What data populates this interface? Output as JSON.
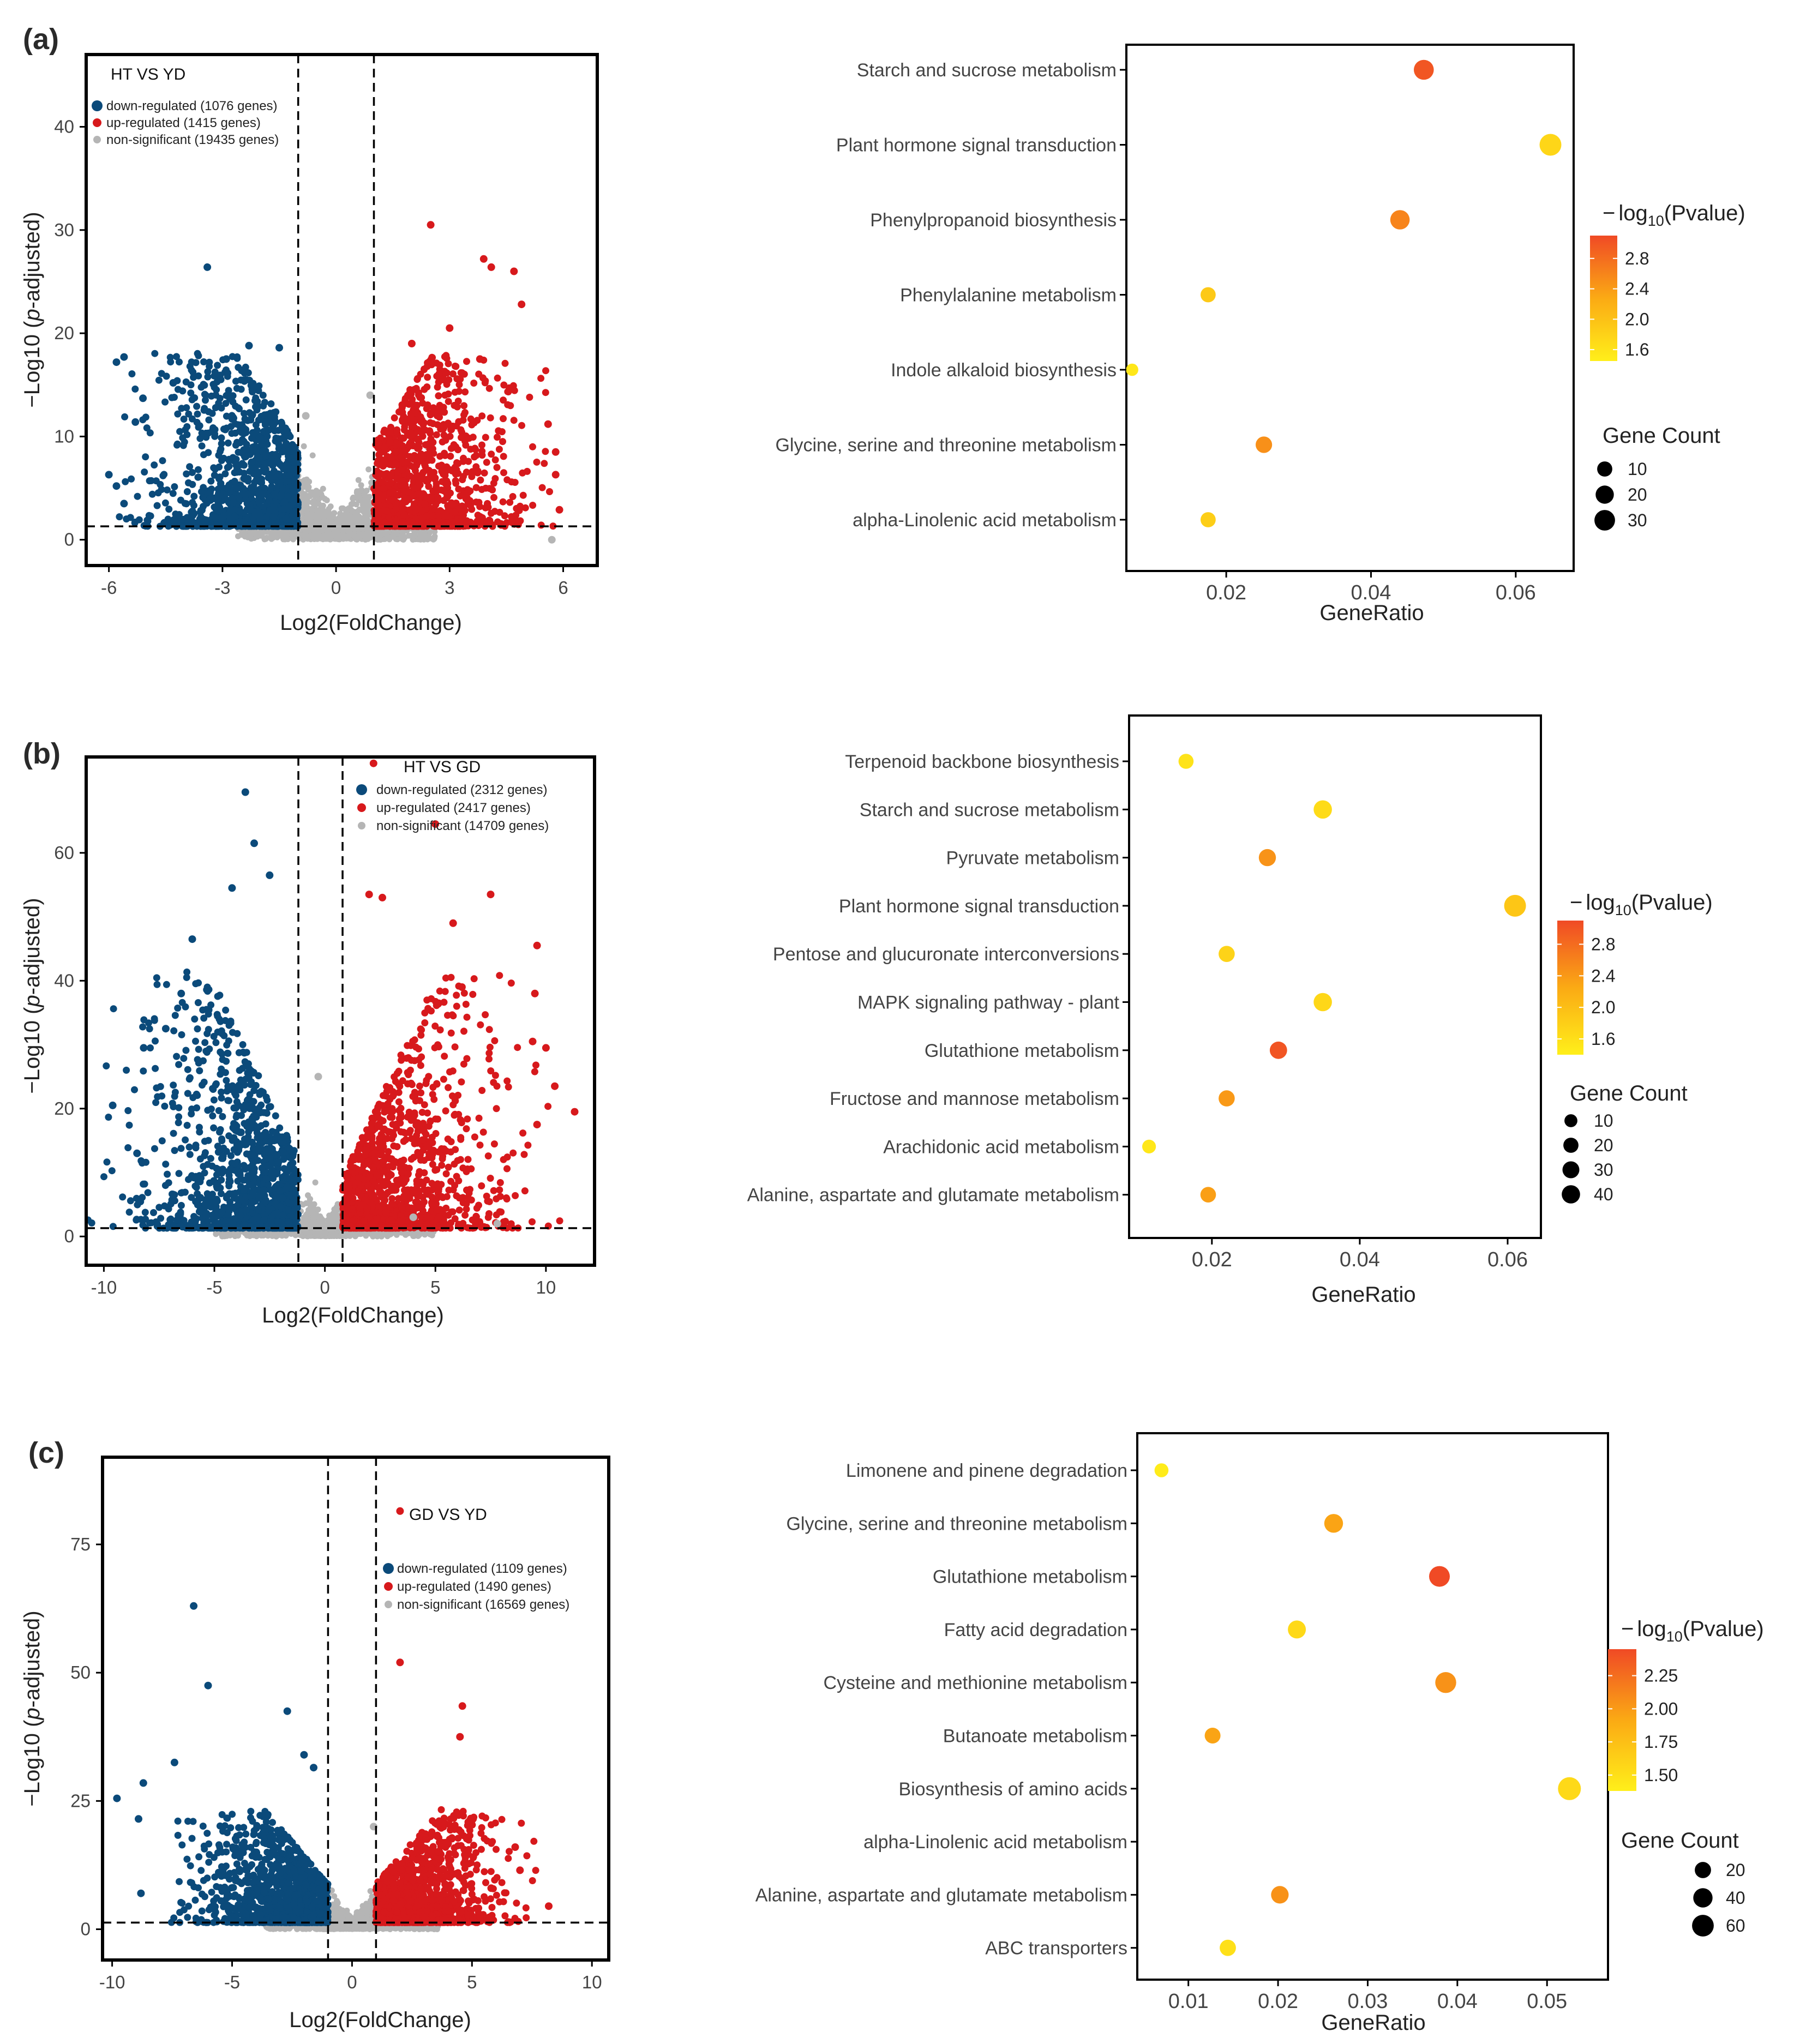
{
  "colors": {
    "down": "#0b4a7a",
    "up": "#d7191c",
    "ns": "#b5b5b5",
    "gradient_low": "#ffef1a",
    "gradient_high": "#f04a25"
  },
  "chart_data": [
    {
      "panel": "(a)",
      "type": "scatter",
      "subtype": "volcano",
      "title": "HT VS YD",
      "xlabel": "Log2(FoldChange)",
      "ylabel_prefix": "−Log10 (",
      "ylabel_italic": "p",
      "ylabel_suffix": "-adjusted)",
      "xlim": [
        -6.6,
        6.9
      ],
      "ylim": [
        -2.5,
        47
      ],
      "xticks": [
        -6,
        -3,
        0,
        3,
        6
      ],
      "yticks": [
        0,
        10,
        20,
        30,
        40
      ],
      "fc_thresholds": [
        -1,
        1
      ],
      "p_threshold": 1.3,
      "x_spread": 5.8,
      "y_max": 30.5,
      "legend": [
        {
          "label": "down-regulated (1076 genes)",
          "color_key": "down"
        },
        {
          "label": "up-regulated (1415 genes)",
          "color_key": "up"
        },
        {
          "label": "non-significant (19435 genes)",
          "color_key": "ns"
        }
      ],
      "outliers": [
        {
          "x": 2.5,
          "y": 30.5,
          "g": "up"
        },
        {
          "x": 3.9,
          "y": 27.2,
          "g": "up"
        },
        {
          "x": 4.1,
          "y": 26.4,
          "g": "up"
        },
        {
          "x": 4.7,
          "y": 26.0,
          "g": "up"
        },
        {
          "x": 4.9,
          "y": 22.8,
          "g": "up"
        },
        {
          "x": 3.0,
          "y": 20.5,
          "g": "up"
        },
        {
          "x": 2.0,
          "y": 19.0,
          "g": "up"
        },
        {
          "x": 3.8,
          "y": 17.5,
          "g": "up"
        },
        {
          "x": 5.6,
          "y": 11.2,
          "g": "up"
        },
        {
          "x": 5.8,
          "y": 8.5,
          "g": "up"
        },
        {
          "x": 5.8,
          "y": 6.3,
          "g": "up"
        },
        {
          "x": 5.9,
          "y": 2.9,
          "g": "up"
        },
        {
          "x": -3.4,
          "y": 26.4,
          "g": "down"
        },
        {
          "x": -5.8,
          "y": 17.2,
          "g": "down"
        },
        {
          "x": -5.6,
          "y": 17.7,
          "g": "down"
        },
        {
          "x": -2.3,
          "y": 18.8,
          "g": "down"
        },
        {
          "x": -1.5,
          "y": 18.6,
          "g": "down"
        },
        {
          "x": -2.9,
          "y": 17.5,
          "g": "down"
        },
        {
          "x": -4.3,
          "y": 15.2,
          "g": "down"
        },
        {
          "x": -5.1,
          "y": 13.7,
          "g": "down"
        },
        {
          "x": -5.3,
          "y": 11.4,
          "g": "down"
        },
        {
          "x": -6.0,
          "y": 6.3,
          "g": "down"
        },
        {
          "x": -5.8,
          "y": 5.2,
          "g": "down"
        },
        {
          "x": -5.6,
          "y": 3.5,
          "g": "down"
        },
        {
          "x": 0.9,
          "y": 14.0,
          "g": "ns"
        },
        {
          "x": -0.8,
          "y": 12.0,
          "g": "ns"
        },
        {
          "x": 5.7,
          "y": 0.0,
          "g": "ns"
        }
      ]
    },
    {
      "panel": "(a)",
      "type": "scatter",
      "subtype": "kegg-dot",
      "xlabel": "GeneRatio",
      "xlim": [
        0.0062,
        0.068
      ],
      "xticks": [
        0.02,
        0.04,
        0.06
      ],
      "tick_labels": [
        "0.02",
        "0.04",
        "0.06"
      ],
      "pathways": [
        "Starch and sucrose metabolism",
        "Plant hormone signal transduction",
        "Phenylpropanoid biosynthesis",
        "Phenylalanine metabolism",
        "Indole alkaloid biosynthesis",
        "Glycine, serine and threonine metabolism",
        "alpha-Linolenic acid metabolism"
      ],
      "gene_ratio": [
        0.0473,
        0.0648,
        0.044,
        0.0175,
        0.007,
        0.0252,
        0.0175
      ],
      "count": [
        27,
        36,
        25,
        10,
        4,
        14,
        10
      ],
      "neglog10_p": [
        3.0,
        1.75,
        2.6,
        1.9,
        1.55,
        2.5,
        1.85
      ],
      "color_range": [
        1.45,
        3.1
      ],
      "color_ticks": [
        2.8,
        2.4,
        2.0,
        1.6
      ],
      "color_tick_labels": [
        "2.8",
        "2.4",
        "2.0",
        "1.6"
      ],
      "color_title": "log",
      "color_title_prefix": "−",
      "color_title_sub": "10",
      "color_title_suffix": "(Pvalue)",
      "size_title": "Gene Count",
      "size_legend": [
        10,
        20,
        30
      ],
      "size_legend_labels": [
        "10",
        "20",
        "30"
      ],
      "size_max": 36
    },
    {
      "panel": "(b)",
      "type": "scatter",
      "subtype": "volcano",
      "title": "HT VS GD",
      "xlabel": "Log2(FoldChange)",
      "ylabel_prefix": "−Log10 (",
      "ylabel_italic": "p",
      "ylabel_suffix": "-adjusted)",
      "xlim": [
        -10.8,
        12.2
      ],
      "ylim": [
        -4.5,
        75
      ],
      "xticks": [
        -10,
        -5,
        0,
        5,
        10
      ],
      "yticks": [
        0,
        20,
        40,
        60
      ],
      "fc_thresholds": [
        -1.2,
        0.8
      ],
      "p_threshold": 1.3,
      "x_spread": 11,
      "y_max": 73,
      "legend": [
        {
          "label": "down-regulated (2312 genes)",
          "color_key": "down"
        },
        {
          "label": "up-regulated (2417 genes)",
          "color_key": "up"
        },
        {
          "label": "non-significant (14709 genes)",
          "color_key": "ns"
        }
      ],
      "outliers": [
        {
          "x": 2.2,
          "y": 74.0,
          "g": "up"
        },
        {
          "x": 5.0,
          "y": 64.5,
          "g": "up"
        },
        {
          "x": 2.0,
          "y": 53.5,
          "g": "up"
        },
        {
          "x": 2.6,
          "y": 53.0,
          "g": "up"
        },
        {
          "x": 7.5,
          "y": 53.5,
          "g": "up"
        },
        {
          "x": 5.8,
          "y": 49.0,
          "g": "up"
        },
        {
          "x": 9.6,
          "y": 45.5,
          "g": "up"
        },
        {
          "x": 6.2,
          "y": 39.0,
          "g": "up"
        },
        {
          "x": 9.5,
          "y": 38.0,
          "g": "up"
        },
        {
          "x": 10.0,
          "y": 29.5,
          "g": "up"
        },
        {
          "x": 9.4,
          "y": 30.5,
          "g": "up"
        },
        {
          "x": 11.3,
          "y": 19.5,
          "g": "up"
        },
        {
          "x": 10.4,
          "y": 23.5,
          "g": "up"
        },
        {
          "x": 9.6,
          "y": 17.5,
          "g": "up"
        },
        {
          "x": 7.8,
          "y": 2.0,
          "g": "ns"
        },
        {
          "x": -3.6,
          "y": 69.5,
          "g": "down"
        },
        {
          "x": -3.2,
          "y": 61.5,
          "g": "down"
        },
        {
          "x": -2.5,
          "y": 56.5,
          "g": "down"
        },
        {
          "x": -4.2,
          "y": 54.5,
          "g": "down"
        },
        {
          "x": -6.0,
          "y": 46.5,
          "g": "down"
        },
        {
          "x": -7.2,
          "y": 32.5,
          "g": "down"
        },
        {
          "x": -8.2,
          "y": 29.5,
          "g": "down"
        },
        {
          "x": -9.6,
          "y": 20.5,
          "g": "down"
        },
        {
          "x": -8.5,
          "y": 13.0,
          "g": "down"
        },
        {
          "x": -6.5,
          "y": 38.0,
          "g": "down"
        },
        {
          "x": 4.0,
          "y": 3.0,
          "g": "ns"
        },
        {
          "x": -0.3,
          "y": 25.0,
          "g": "ns"
        }
      ]
    },
    {
      "panel": "(b)",
      "type": "scatter",
      "subtype": "kegg-dot",
      "xlabel": "GeneRatio",
      "xlim": [
        0.0088,
        0.0645
      ],
      "xticks": [
        0.02,
        0.04,
        0.06
      ],
      "tick_labels": [
        "0.02",
        "0.04",
        "0.06"
      ],
      "pathways": [
        "Terpenoid backbone biosynthesis",
        "Starch and sucrose metabolism",
        "Pyruvate metabolism",
        "Plant hormone signal transduction",
        "Pentose and glucuronate interconversions",
        "MAPK signaling pathway - plant",
        "Glutathione metabolism",
        "Fructose and mannose metabolism",
        "Arachidonic acid metabolism",
        "Alanine, aspartate and glutamate metabolism"
      ],
      "gene_ratio": [
        0.0165,
        0.035,
        0.0275,
        0.061,
        0.022,
        0.035,
        0.029,
        0.022,
        0.0115,
        0.0195
      ],
      "count": [
        19,
        40,
        31,
        70,
        25,
        40,
        33,
        25,
        13,
        22
      ],
      "neglog10_p": [
        1.55,
        1.65,
        2.45,
        1.9,
        1.75,
        1.7,
        3.0,
        2.4,
        1.5,
        2.35
      ],
      "color_range": [
        1.4,
        3.1
      ],
      "color_ticks": [
        2.8,
        2.4,
        2.0,
        1.6
      ],
      "color_tick_labels": [
        "2.8",
        "2.4",
        "2.0",
        "1.6"
      ],
      "color_title": "log",
      "color_title_prefix": "−",
      "color_title_sub": "10",
      "color_title_suffix": "(Pvalue)",
      "size_title": "Gene Count",
      "size_legend": [
        10,
        20,
        30,
        40
      ],
      "size_legend_labels": [
        "10",
        "20",
        "30",
        "40"
      ],
      "size_max": 70
    },
    {
      "panel": "(c)",
      "type": "scatter",
      "subtype": "volcano",
      "title": "GD VS YD",
      "xlabel": "Log2(FoldChange)",
      "ylabel_prefix": "−Log10 (",
      "ylabel_italic": "p",
      "ylabel_suffix": "-adjusted)",
      "xlim": [
        -10.4,
        10.7
      ],
      "ylim": [
        -6,
        92
      ],
      "xticks": [
        -10,
        -5,
        0,
        5,
        10
      ],
      "yticks": [
        0,
        25,
        50,
        75
      ],
      "fc_thresholds": [
        -1,
        1
      ],
      "p_threshold": 1.3,
      "x_spread": 8,
      "y_max": 40,
      "legend": [
        {
          "label": "down-regulated (1109 genes)",
          "color_key": "down"
        },
        {
          "label": "up-regulated (1490 genes)",
          "color_key": "up"
        },
        {
          "label": "non-significant (16569 genes)",
          "color_key": "ns"
        }
      ],
      "outliers": [
        {
          "x": 2.0,
          "y": 81.5,
          "g": "up"
        },
        {
          "x": 2.0,
          "y": 52.0,
          "g": "up"
        },
        {
          "x": 4.6,
          "y": 43.5,
          "g": "up"
        },
        {
          "x": 4.5,
          "y": 37.5,
          "g": "up"
        },
        {
          "x": 6.8,
          "y": 16.0,
          "g": "up"
        },
        {
          "x": 8.2,
          "y": 4.5,
          "g": "up"
        },
        {
          "x": 7.0,
          "y": 11.5,
          "g": "up"
        },
        {
          "x": 5.8,
          "y": 8.0,
          "g": "up"
        },
        {
          "x": -6.6,
          "y": 63.0,
          "g": "down"
        },
        {
          "x": -6.0,
          "y": 47.5,
          "g": "down"
        },
        {
          "x": -2.7,
          "y": 42.5,
          "g": "down"
        },
        {
          "x": -7.4,
          "y": 32.5,
          "g": "down"
        },
        {
          "x": -8.7,
          "y": 28.5,
          "g": "down"
        },
        {
          "x": -9.8,
          "y": 25.5,
          "g": "down"
        },
        {
          "x": -2.0,
          "y": 34.0,
          "g": "down"
        },
        {
          "x": -1.6,
          "y": 31.5,
          "g": "down"
        },
        {
          "x": -8.9,
          "y": 21.5,
          "g": "down"
        },
        {
          "x": -8.8,
          "y": 7.0,
          "g": "down"
        },
        {
          "x": 0.9,
          "y": 20.0,
          "g": "ns"
        }
      ]
    },
    {
      "panel": "(c)",
      "type": "scatter",
      "subtype": "kegg-dot",
      "xlabel": "GeneRatio",
      "xlim": [
        0.0043,
        0.0568
      ],
      "xticks": [
        0.01,
        0.02,
        0.03,
        0.04,
        0.05
      ],
      "tick_labels": [
        "0.01",
        "0.02",
        "0.03",
        "0.04",
        "0.05"
      ],
      "pathways": [
        "Limonene and pinene degradation",
        "Glycine, serine and threonine metabolism",
        "Glutathione metabolism",
        "Fatty acid degradation",
        "Cysteine and methionine metabolism",
        "Butanoate metabolism",
        "Biosynthesis of amino acids",
        "alpha-Linolenic acid metabolism",
        "Alanine, aspartate and glutamate metabolism",
        "ABC transporters"
      ],
      "gene_ratio": [
        0.007,
        0.0262,
        0.038,
        0.0221,
        0.0387,
        0.0127,
        0.0525,
        null,
        0.0202,
        0.0144
      ],
      "count": [
        10,
        36,
        52,
        31,
        53,
        18,
        72,
        null,
        28,
        20
      ],
      "neglog10_p": [
        1.4,
        1.95,
        2.5,
        1.55,
        2.05,
        1.95,
        1.55,
        null,
        2.05,
        1.5
      ],
      "color_range": [
        1.38,
        2.45
      ],
      "color_ticks": [
        2.25,
        2.0,
        1.75,
        1.5
      ],
      "color_tick_labels": [
        "2.25",
        "2.00",
        "1.75",
        "1.50"
      ],
      "color_title": "log",
      "color_title_prefix": "−",
      "color_title_sub": "10",
      "color_title_suffix": "(Pvalue)",
      "size_title": "Gene Count",
      "size_legend": [
        20,
        40,
        60
      ],
      "size_legend_labels": [
        "20",
        "40",
        "60"
      ],
      "size_max": 72
    }
  ]
}
